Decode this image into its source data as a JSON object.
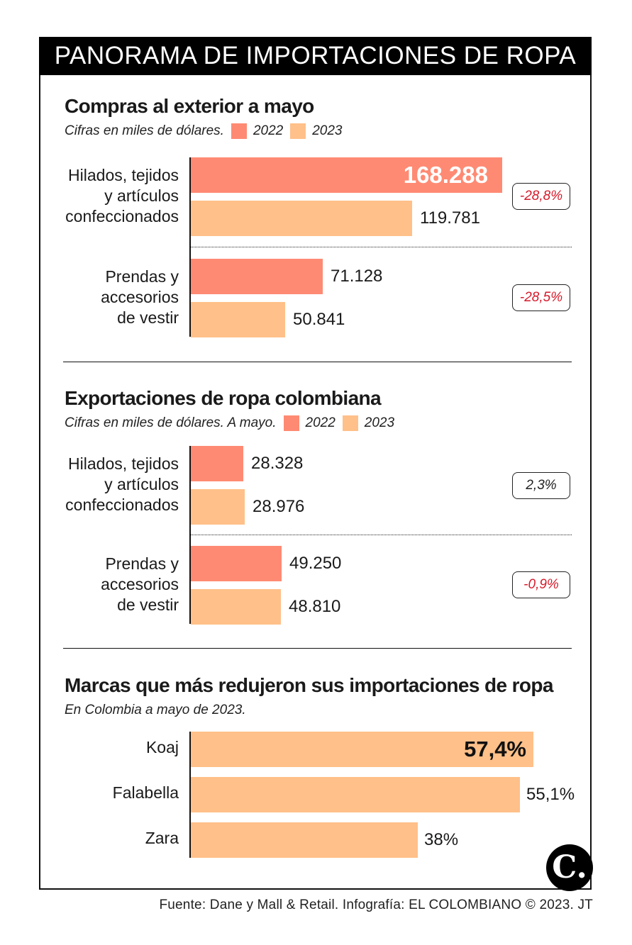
{
  "header": {
    "title": "PANORAMA DE IMPORTACIONES DE ROPA"
  },
  "colors": {
    "c2022": "#FF8A73",
    "c2023": "#FFC089",
    "pct_negative": "#d61a2a",
    "pct_neutral": "#222222"
  },
  "chart_data": [
    {
      "type": "bar",
      "orientation": "horizontal",
      "title": "Compras al exterior a mayo",
      "subtitle": "Cifras en miles de dólares.",
      "legend": [
        "2022",
        "2023"
      ],
      "categories": [
        "Hilados, tejidos\ny artículos\nconfeccionados",
        "Prendas y\naccesorios\nde vestir"
      ],
      "series": [
        {
          "name": "2022",
          "values": [
            168288,
            71128
          ],
          "labels": [
            "168.288",
            "71.128"
          ]
        },
        {
          "name": "2023",
          "values": [
            119781,
            50841
          ],
          "labels": [
            "119.781",
            "50.841"
          ]
        }
      ],
      "changes": [
        "-28,8%",
        "-28,5%"
      ],
      "xlim": [
        0,
        168288
      ]
    },
    {
      "type": "bar",
      "orientation": "horizontal",
      "title": "Exportaciones de ropa colombiana",
      "subtitle": "Cifras en miles de dólares. A mayo.",
      "legend": [
        "2022",
        "2023"
      ],
      "categories": [
        "Hilados, tejidos\ny artículos\nconfeccionados",
        "Prendas y\naccesorios\nde vestir"
      ],
      "series": [
        {
          "name": "2022",
          "values": [
            28328,
            49250
          ],
          "labels": [
            "28.328",
            "49.250"
          ]
        },
        {
          "name": "2023",
          "values": [
            28976,
            48810
          ],
          "labels": [
            "28.976",
            "48.810"
          ]
        }
      ],
      "changes": [
        "2,3%",
        "-0,9%"
      ],
      "xlim": [
        0,
        168288
      ]
    },
    {
      "type": "bar",
      "orientation": "horizontal",
      "title": "Marcas que más redujeron sus importaciones de ropa",
      "subtitle": "En Colombia a mayo de 2023.",
      "categories": [
        "Koaj",
        "Falabella",
        "Zara"
      ],
      "values": [
        57.4,
        55.1,
        38
      ],
      "labels": [
        "57,4%",
        "55,1%",
        "38%"
      ],
      "xlim": [
        0,
        57.4
      ]
    }
  ],
  "footer": {
    "source": "Fuente: Dane y  Mall & Retail. Infografía: EL COLOMBIANO © 2023. JT"
  },
  "logo": {
    "glyph": "C."
  }
}
